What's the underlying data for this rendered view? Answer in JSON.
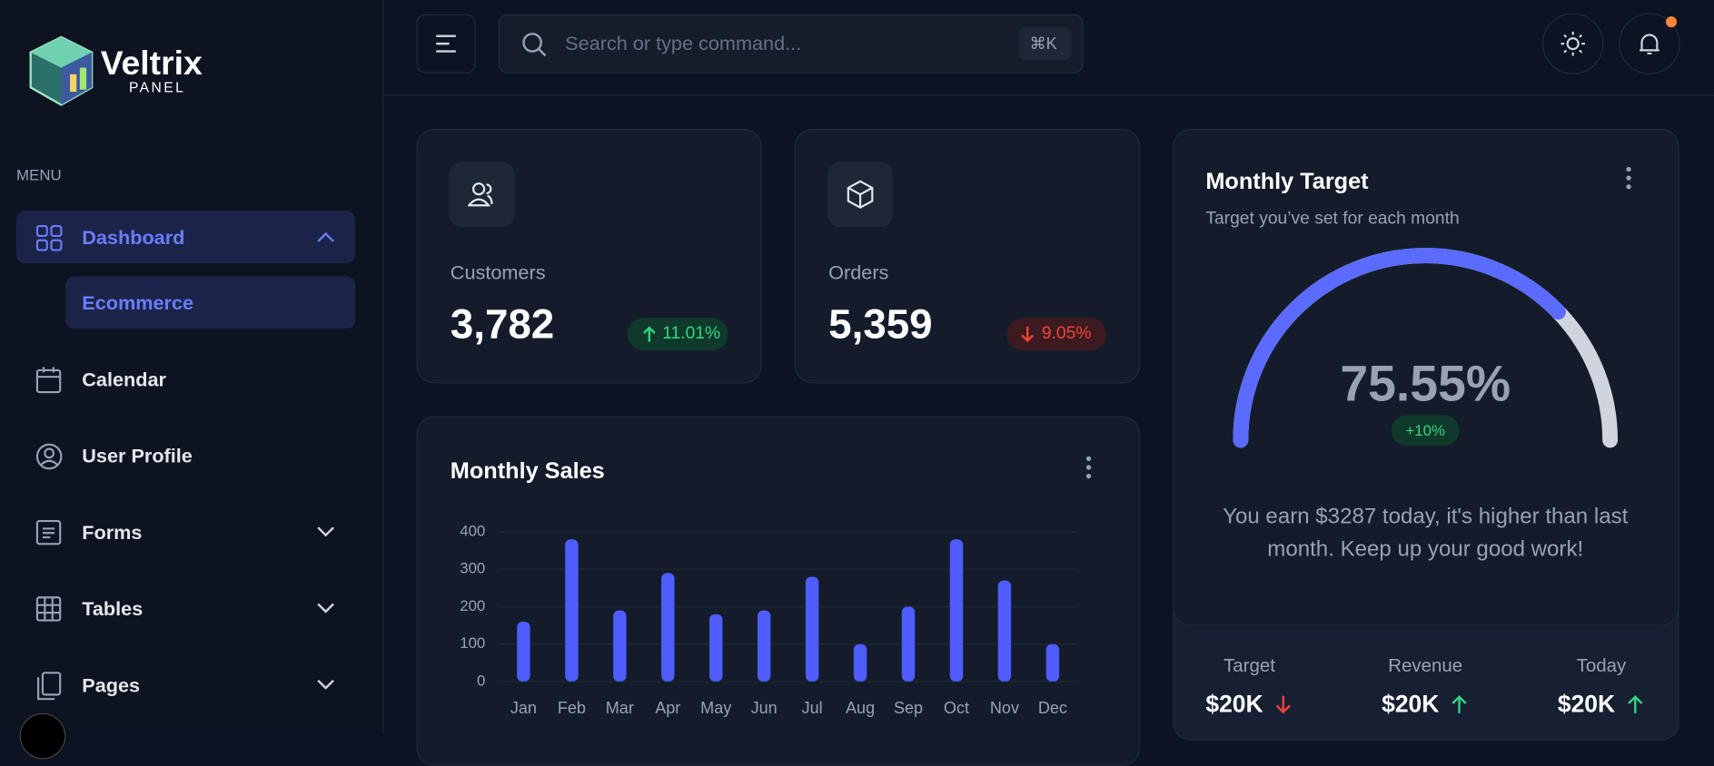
{
  "sidebar": {
    "logo_title": "Veltrix",
    "logo_subtitle": "PANEL",
    "menu_heading": "MENU",
    "items": [
      {
        "label": "Dashboard",
        "subitems": [
          "Ecommerce"
        ]
      },
      {
        "label": "Calendar"
      },
      {
        "label": "User Profile"
      },
      {
        "label": "Forms"
      },
      {
        "label": "Tables"
      },
      {
        "label": "Pages"
      }
    ]
  },
  "header": {
    "search_placeholder": "Search or type command...",
    "shortcut": "⌘K"
  },
  "stats": [
    {
      "label": "Customers",
      "value": "3,782",
      "change": "11.01%"
    },
    {
      "label": "Orders",
      "value": "5,359",
      "change": "9.05%"
    }
  ],
  "chart_data": {
    "type": "bar",
    "title": "Monthly Sales",
    "categories": [
      "Jan",
      "Feb",
      "Mar",
      "Apr",
      "May",
      "Jun",
      "Jul",
      "Aug",
      "Sep",
      "Oct",
      "Nov",
      "Dec"
    ],
    "values": [
      160,
      380,
      190,
      290,
      180,
      190,
      280,
      100,
      200,
      380,
      270,
      100
    ],
    "color": "#4f5cff",
    "ylim": [
      0,
      400
    ],
    "yticks": [
      0,
      100,
      200,
      300,
      400
    ],
    "grid": true
  },
  "monthly_target": {
    "title": "Monthly Target",
    "subtitle": "Target you’ve set for each month",
    "value": 75.55,
    "value_label": "75.55%",
    "change": "+10%",
    "message": "You earn $3287 today, it's higher than last month. Keep up your good work!",
    "summary": [
      {
        "label": "Target",
        "value": "$20K"
      },
      {
        "label": "Revenue",
        "value": "$20K"
      },
      {
        "label": "Today",
        "value": "$20K"
      }
    ]
  }
}
